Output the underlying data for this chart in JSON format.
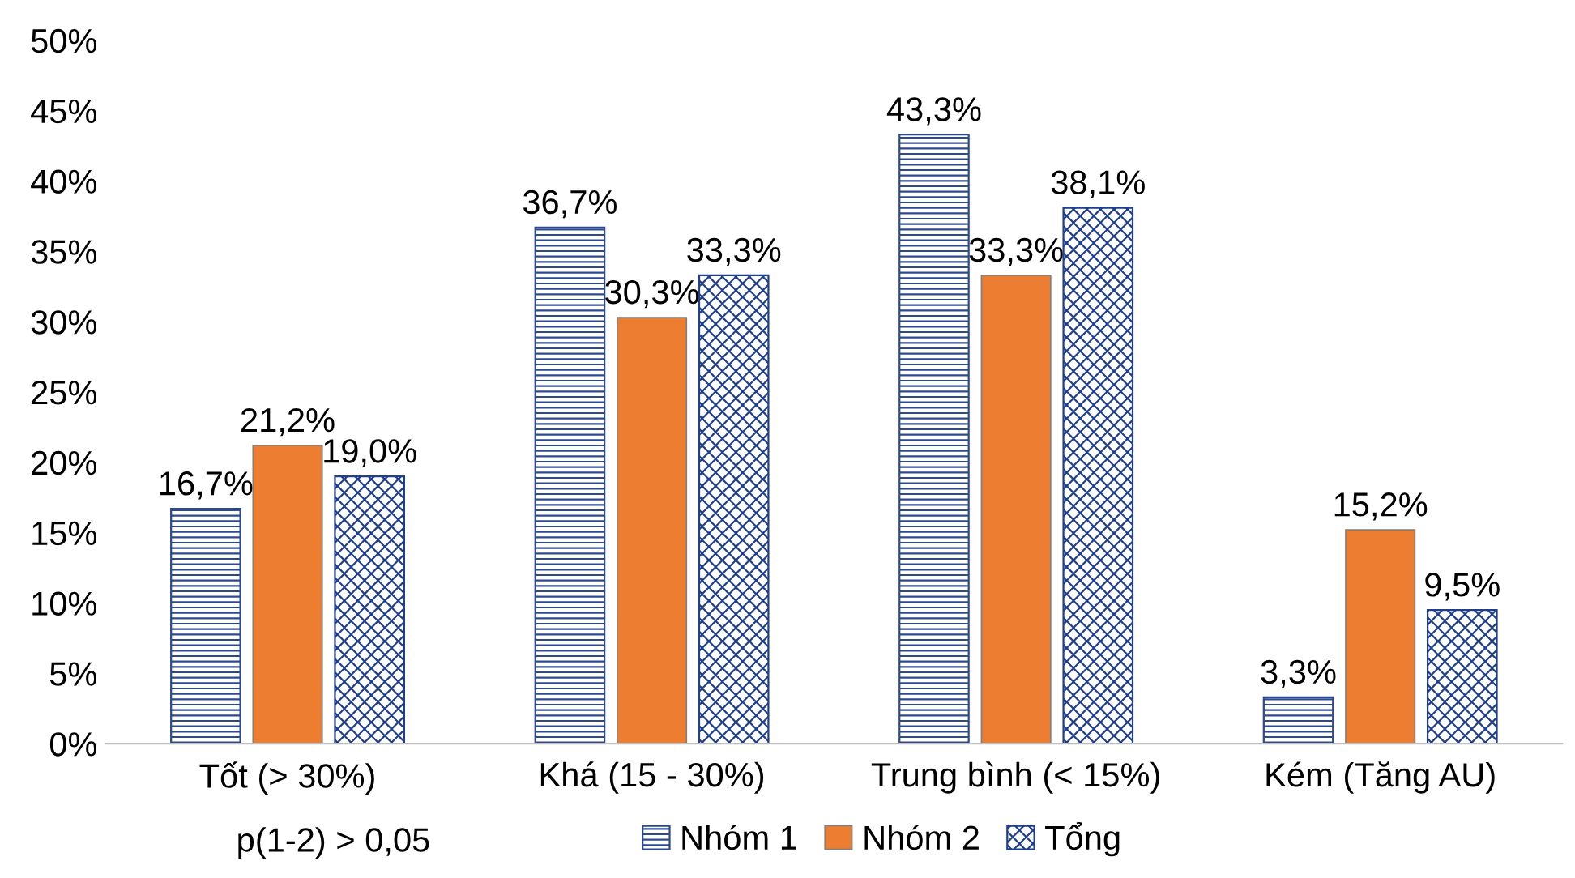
{
  "chart_data": {
    "type": "bar",
    "categories": [
      "Tốt (> 30%)",
      "Khá (15 - 30%)",
      "Trung bình (< 15%)",
      "Kém (Tăng AU)"
    ],
    "series": [
      {
        "name": "Nhóm 1",
        "color": "#2e4a8e",
        "values": [
          16.7,
          36.7,
          43.3,
          3.3
        ],
        "value_labels": [
          "16,7%",
          "36,7%",
          "43,3%",
          "3,3%"
        ]
      },
      {
        "name": "Nhóm 2",
        "color": "#ed7d31",
        "values": [
          21.2,
          30.3,
          33.3,
          15.2
        ],
        "value_labels": [
          "21,2%",
          "30,3%",
          "33,3%",
          "15,2%"
        ]
      },
      {
        "name": "Tổng",
        "color": "#1f3e8c",
        "values": [
          19.0,
          33.3,
          38.1,
          9.5
        ],
        "value_labels": [
          "19,0%",
          "33,3%",
          "38,1%",
          "9,5%"
        ]
      }
    ],
    "ylim": [
      0,
      50
    ],
    "yticks": [
      {
        "value": 0,
        "label": "0%"
      },
      {
        "value": 5,
        "label": "5%"
      },
      {
        "value": 10,
        "label": "10%"
      },
      {
        "value": 15,
        "label": "15%"
      },
      {
        "value": 20,
        "label": "20%"
      },
      {
        "value": 25,
        "label": "25%"
      },
      {
        "value": 30,
        "label": "30%"
      },
      {
        "value": 35,
        "label": "35%"
      },
      {
        "value": 40,
        "label": "40%"
      },
      {
        "value": 45,
        "label": "45%"
      },
      {
        "value": 50,
        "label": "50%"
      }
    ],
    "grid": false,
    "legend": "bottom",
    "annotations": [
      "p(1-2) > 0,05"
    ]
  }
}
